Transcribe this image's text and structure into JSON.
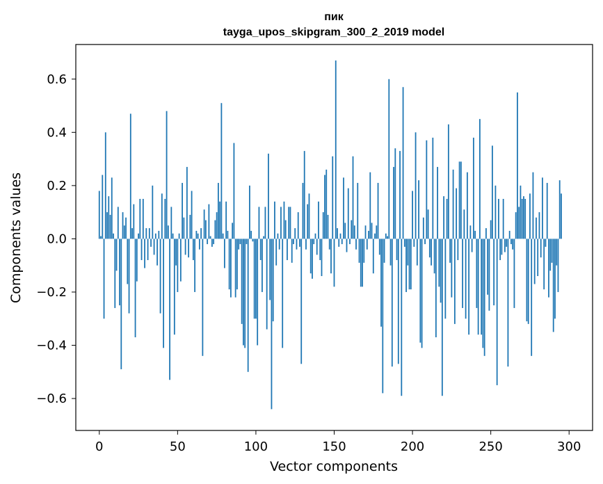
{
  "chart_data": {
    "type": "bar",
    "title_line1": "пик",
    "title_line2": "tayga_upos_skipgram_300_2_2019 model",
    "xlabel": "Vector components",
    "ylabel": "Components values",
    "xlim": [
      -15,
      315
    ],
    "ylim": [
      -0.72,
      0.73
    ],
    "xticks": [
      0,
      50,
      100,
      150,
      200,
      250,
      300
    ],
    "xtick_labels": [
      "0",
      "50",
      "100",
      "150",
      "200",
      "250",
      "300"
    ],
    "yticks": [
      -0.6,
      -0.4,
      -0.2,
      0.0,
      0.2,
      0.4,
      0.6
    ],
    "ytick_labels": [
      "−0.6",
      "−0.4",
      "−0.2",
      "0.0",
      "0.2",
      "0.4",
      "0.6"
    ],
    "color": "#1f77b4",
    "values": [
      0.18,
      0.01,
      0.24,
      -0.3,
      0.4,
      0.1,
      0.16,
      0.09,
      0.23,
      0.02,
      -0.26,
      -0.12,
      0.12,
      -0.25,
      -0.49,
      0.1,
      0.05,
      0.08,
      -0.17,
      -0.28,
      0.47,
      0.04,
      0.13,
      -0.37,
      -0.16,
      0.02,
      0.15,
      -0.08,
      0.15,
      -0.11,
      0.04,
      -0.08,
      0.04,
      -0.03,
      0.2,
      -0.06,
      0.02,
      -0.1,
      0.03,
      -0.28,
      0.17,
      -0.41,
      0.15,
      0.48,
      0.05,
      -0.53,
      0.12,
      0.02,
      -0.36,
      -0.1,
      -0.2,
      0.02,
      -0.16,
      0.21,
      0.08,
      -0.06,
      0.27,
      -0.07,
      0.09,
      0.18,
      -0.08,
      -0.2,
      0.03,
      0.02,
      -0.04,
      0.04,
      -0.44,
      0.11,
      0.07,
      -0.02,
      0.13,
      0.01,
      -0.03,
      -0.02,
      0.07,
      0.1,
      0.21,
      0.14,
      0.51,
      0.02,
      -0.11,
      0.14,
      0.03,
      -0.19,
      -0.22,
      0.06,
      0.36,
      -0.22,
      -0.19,
      -0.04,
      -0.02,
      -0.32,
      -0.4,
      -0.41,
      -0.02,
      -0.5,
      0.2,
      0.03,
      -0.01,
      -0.3,
      -0.3,
      -0.4,
      0.12,
      -0.08,
      -0.2,
      0.01,
      0.12,
      -0.34,
      0.32,
      -0.23,
      -0.64,
      -0.31,
      0.14,
      -0.1,
      0.02,
      -0.04,
      0.12,
      -0.41,
      0.14,
      0.07,
      -0.08,
      0.12,
      0.12,
      -0.09,
      -0.02,
      0.04,
      -0.04,
      0.1,
      -0.03,
      -0.47,
      0.21,
      0.33,
      -0.04,
      0.13,
      0.17,
      -0.13,
      -0.15,
      -0.02,
      0.02,
      -0.06,
      0.14,
      -0.08,
      -0.14,
      0.1,
      0.24,
      0.26,
      0.09,
      -0.04,
      -0.13,
      0.31,
      -0.18,
      0.67,
      0.04,
      -0.03,
      0.02,
      -0.02,
      0.23,
      0.06,
      -0.05,
      0.19,
      -0.02,
      0.07,
      0.31,
      0.05,
      -0.04,
      0.21,
      -0.09,
      -0.18,
      -0.18,
      -0.09,
      0.05,
      -0.04,
      0.03,
      0.25,
      0.06,
      -0.13,
      0.02,
      0.05,
      0.21,
      -0.06,
      -0.33,
      -0.58,
      -0.09,
      0.02,
      0.01,
      0.6,
      -0.1,
      -0.48,
      0.27,
      0.34,
      -0.08,
      -0.47,
      0.33,
      -0.59,
      0.57,
      -0.03,
      -0.2,
      -0.1,
      -0.19,
      -0.19,
      0.18,
      -0.03,
      0.4,
      -0.1,
      0.22,
      -0.39,
      -0.41,
      0.08,
      -0.02,
      0.37,
      0.11,
      -0.07,
      -0.1,
      0.38,
      -0.13,
      -0.37,
      0.27,
      -0.18,
      -0.24,
      -0.59,
      0.16,
      -0.3,
      0.15,
      0.43,
      -0.09,
      -0.22,
      0.26,
      -0.32,
      0.19,
      -0.08,
      0.29,
      0.29,
      -0.26,
      0.11,
      -0.3,
      0.25,
      -0.36,
      0.05,
      -0.05,
      0.38,
      0.03,
      -0.26,
      -0.36,
      0.45,
      -0.36,
      -0.41,
      -0.44,
      0.04,
      -0.21,
      -0.27,
      0.07,
      0.35,
      -0.25,
      0.2,
      -0.55,
      0.15,
      -0.08,
      -0.06,
      0.15,
      -0.05,
      -0.03,
      -0.48,
      0.03,
      -0.02,
      -0.04,
      -0.26,
      0.1,
      0.55,
      0.12,
      0.2,
      0.15,
      0.16,
      0.15,
      -0.31,
      -0.32,
      0.17,
      -0.44,
      0.25,
      -0.17,
      0.08,
      -0.14,
      0.1,
      -0.07,
      0.23,
      -0.19,
      -0.03,
      0.21,
      -0.22,
      -0.12,
      -0.09,
      -0.35,
      -0.3,
      -0.1,
      -0.2,
      0.22,
      0.17
    ]
  }
}
